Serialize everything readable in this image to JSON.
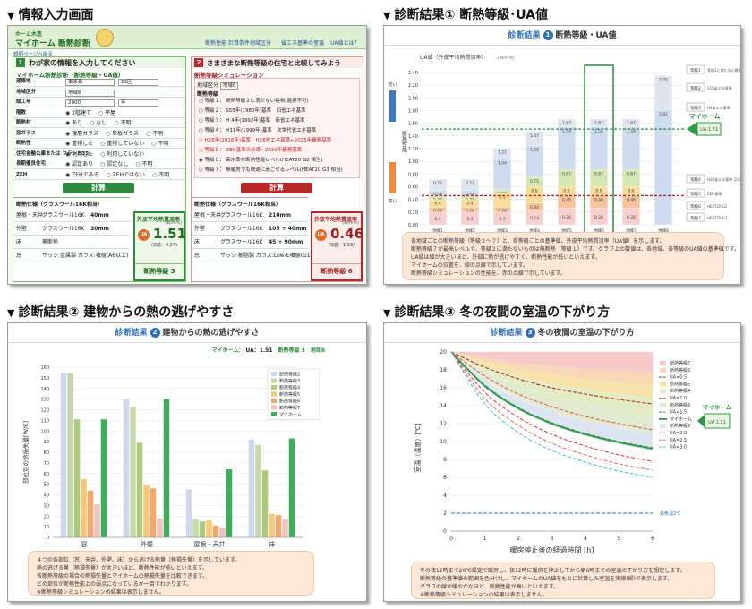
{
  "titles": {
    "t1": "情報入力画面",
    "t2": "診断結果① 断熱等級･UA値",
    "t3": "診断結果② 建物からの熱の逃げやすさ",
    "t4": "診断結果③ 冬の夜間の室温の下がり方"
  },
  "input": {
    "logo_top": "ホーム木造",
    "logo_main": "マイホーム 断熱診断",
    "nav": [
      "断熱性能 計算条件",
      "地域区分",
      "省エネ基準の室温",
      "UA値とは？"
    ],
    "back_link": "説明ページへ戻る",
    "left_header": "わが家の情報を入力してください",
    "left_sub": "マイホーム断熱診断（断熱等級・UA値）",
    "fields": [
      {
        "label": "建築地",
        "value": "東京都",
        "value2": "23区"
      },
      {
        "label": "地域区分",
        "value": "地域6"
      },
      {
        "label": "竣工年",
        "value": "2000",
        "value2": "年"
      },
      {
        "label": "階数",
        "opts": [
          "2階建て",
          "平屋"
        ]
      },
      {
        "label": "断熱材",
        "opts": [
          "あり",
          "なし",
          "不明"
        ]
      },
      {
        "label": "窓ガラス",
        "opts": [
          "複層ガラス",
          "単板ガラス",
          "不明"
        ]
      },
      {
        "label": "断熱性",
        "opts": [
          "重視した",
          "重視していない",
          "不明"
        ]
      },
      {
        "label": "住宅金融公庫または フラット35",
        "opts": [
          "利用した",
          "利用していない"
        ]
      },
      {
        "label": "長期優良住宅",
        "opts": [
          "認定あり",
          "認定なし",
          "不明"
        ]
      },
      {
        "label": "ZEH",
        "opts": [
          "ZEHである",
          "ZEHではない",
          "不明"
        ]
      }
    ],
    "calc": "計算",
    "spec_title": "断熱仕様（グラスウール16K相当）",
    "spec_left": [
      {
        "part": "屋根・天井",
        "mat": "グラスウール16K",
        "thk": "40mm"
      },
      {
        "part": "外壁",
        "mat": "グラスウール16K",
        "thk": "30mm"
      },
      {
        "part": "床",
        "mat": "無断熱",
        "thk": ""
      },
      {
        "part": "窓",
        "mat": "サッシ:金属製 ガラス:複層(A6以上)",
        "thk": ""
      }
    ],
    "ua_label": "外皮平均熱貫流率",
    "ua_unit": "(W/m²K)",
    "ua_left": "1.51",
    "ua_left_std": "(Q値：4.27)",
    "grade_left": "断熱等級 3",
    "right_header": "さまざまな断熱等級の住宅と比較してみよう",
    "right_sub": "断熱等級シミュレーション",
    "right_region": "地域6",
    "right_levels_title": "断熱等級",
    "levels": [
      {
        "g": "等級１：",
        "t": "断熱等級２に満たない建物(選択不可)",
        "red": false
      },
      {
        "g": "等級２：",
        "t": "S55年(1980年)基準",
        "t2": "旧省エネ基準",
        "red": false
      },
      {
        "g": "等級３：",
        "t": "H 4年(1992年)基準",
        "t2": "新省エネ基準",
        "red": false
      },
      {
        "g": "等級４：",
        "t": "H11年(1999年)基準",
        "t2": "次世代省エネ基準",
        "red": false
      },
      {
        "g": "",
        "t": "H28年(2016年)基準",
        "t2": "H28省エネ基準←2025年義務基準",
        "red": true
      },
      {
        "g": "等級５：",
        "t": "ZEH基準の水準←2030年義務基準",
        "red": true
      },
      {
        "g": "等級６：",
        "t": "高水準な断熱性能レベル(HEAT20 G2 相当)",
        "red": false
      },
      {
        "g": "等級７：",
        "t": "無暖房でも快適に過ごせるレベル(HEAT20 G3 相当)",
        "red": false
      }
    ],
    "spec_right": [
      {
        "part": "屋根・天井",
        "mat": "グラスウール16K",
        "thk": "210mm"
      },
      {
        "part": "外壁",
        "mat": "グラスウール16K",
        "thk": "105 + 40mm"
      },
      {
        "part": "床",
        "mat": "グラスウール16K",
        "thk": "45 + 90mm"
      },
      {
        "part": "窓",
        "mat": "サッシ:樹脂製 ガラス:Low-E複層(G10以上)",
        "thk": ""
      }
    ],
    "ua_right": "0.46",
    "ua_right_std": "(Q値：1.59)",
    "grade_right": "断熱等級 6"
  },
  "ua_panel": {
    "heading_k": "診断結果",
    "num": "1",
    "heading": "断熱等級・UA値",
    "axis_label": "UA値（外皮平均熱貫流率）",
    "unit": "(W/m²K)",
    "y_side_top": "低い",
    "y_side_mid": "断熱性能",
    "y_side_bot": "高い",
    "myhome": "マイホーム",
    "myhome_ua": "UA 1.51",
    "notes": [
      "各地域ごとの断熱等級（等級２～７）と、各等級ごとの基準値、外皮平均熱貫流率（UA値）を示します。",
      "断熱等級７が最高レベルで、等級２に満たないものは無断熱（等級１）です。グラフ上の数値は、各地域、各等級のUA値の基準値です。",
      "UA値は値が大きいほど、外部に熱が逃げやすく、断熱性能が低いといえます。",
      "マイホームの位置を、緑の点線で示しています。",
      "断熱等級シミュレーションの性能を、赤の点線で示しています。"
    ]
  },
  "heat_panel": {
    "heading_k": "診断結果",
    "num": "2",
    "heading": "建物からの熱の逃げやすさ",
    "summary_1": "マイホーム：",
    "summary_2": "UA：1.51",
    "summary_3": "断熱等級 3",
    "summary_4": "地域6",
    "ylabel": "部位別の熱損失量[W/K]",
    "notes": [
      "４つの各部位（窓、天井、外壁、床）から逃げる熱量（熱損失量）を示しています。",
      "熱の逃げる量（熱損失量）が大きいほど、断熱性能が低いといえます。",
      "各断熱等級の場合の熱損失量とマイホームの熱損失量を比較できます。",
      "どの部位が断熱性能上の弱点になっているか一目でわかります。",
      "※断熱等級シミュレーションの結果は表示しません。"
    ]
  },
  "temp_panel": {
    "heading_k": "診断結果",
    "num": "3",
    "heading": "冬の夜間の室温の下がり方",
    "ylabel": "室温（温度）[℃]",
    "xlabel": "暖房停止後の経過時間 [h]",
    "outdoor_label": "外気温2℃",
    "myhome_label": "マイホーム",
    "myhome_ua": "UA 1.51",
    "notes": [
      "冬の夜12時まで20℃設定で暖房し、夜12時に暖房を停止してから朝6時までの室温の下がり方を想定します。",
      "断熱等級の基準値の範囲を色分けし、マイホームのUA値をもとに計算した室温を実線(緑)で表示します。",
      "グラフの線が緩やかなほど、断熱性能が高いといえます。",
      "※断熱等級シミュレーションの結果は表示しません。"
    ]
  },
  "chart_data": [
    {
      "type": "bar",
      "name": "ua_by_region",
      "categories": [
        "地域1 夕張 釧路",
        "地域2 札幌 旭川",
        "地域3 盛岡 青森",
        "地域4 仙台 新潟・長野",
        "地域5 水戸 宇都宮",
        "地域6 東京 大阪",
        "地域7 宮崎 鹿児島",
        "地域8 沖縄"
      ],
      "ylim": [
        0,
        2.4
      ],
      "yticks": [
        0,
        0.2,
        0.4,
        0.6,
        0.8,
        1.0,
        1.2,
        1.4,
        1.6,
        1.8,
        2.0,
        2.2,
        2.4
      ],
      "series": [
        {
          "name": "等級2",
          "values": [
            0.72,
            0.72,
            1.21,
            1.47,
            1.67,
            1.67,
            1.67,
            2.35
          ]
        },
        {
          "name": "等級3",
          "values": [
            0.54,
            0.54,
            1.04,
            1.25,
            1.54,
            1.54,
            1.54,
            1.81
          ]
        },
        {
          "name": "等級4",
          "values": [
            0.46,
            0.46,
            0.56,
            0.75,
            0.87,
            0.87,
            0.87,
            null
          ]
        },
        {
          "name": "等級5",
          "values": [
            0.4,
            0.4,
            0.5,
            0.6,
            0.6,
            0.6,
            0.6,
            null
          ]
        },
        {
          "name": "等級6",
          "values": [
            0.28,
            0.28,
            0.28,
            0.34,
            0.46,
            0.46,
            0.46,
            null
          ]
        },
        {
          "name": "等級7",
          "values": [
            0.2,
            0.2,
            0.2,
            0.23,
            0.26,
            0.26,
            0.26,
            null
          ]
        }
      ],
      "legend_right": [
        "等級1 等級2に満たない建物",
        "等級2 S55省エネ基準",
        "等級3 H4省エネ基準",
        "等級4 H28省エネ基準 (2025年義務基準)",
        "等級5 ZEH基準",
        "等級6 HEAT20 G2",
        "等級7 HEAT20 G3"
      ],
      "reference_lines": [
        {
          "name": "マイホーム",
          "value": 1.51,
          "color": "#2e9a46"
        },
        {
          "name": "シミュレーション",
          "value": 0.46,
          "color": "#b8282b"
        }
      ]
    },
    {
      "type": "bar",
      "name": "heat_loss_by_part",
      "categories": [
        "窓",
        "外壁",
        "屋根・天井",
        "床"
      ],
      "ylim": [
        0,
        160
      ],
      "yticks": [
        0,
        10,
        20,
        30,
        40,
        50,
        60,
        70,
        80,
        90,
        100,
        110,
        120,
        130,
        140,
        150,
        160
      ],
      "series": [
        {
          "name": "断熱等級2",
          "color": "#cdd8ec",
          "values": [
            155,
            130,
            45,
            92
          ]
        },
        {
          "name": "断熱等級3",
          "color": "#c6d9ac",
          "values": [
            155,
            123,
            17,
            87
          ]
        },
        {
          "name": "断熱等級4",
          "color": "#acc97c",
          "values": [
            111,
            89,
            15,
            63
          ]
        },
        {
          "name": "断熱等級5",
          "color": "#f6c77d",
          "values": [
            55,
            49,
            16,
            22
          ]
        },
        {
          "name": "断熱等級6",
          "color": "#f0a86c",
          "values": [
            44,
            46,
            11,
            21
          ]
        },
        {
          "name": "断熱等級7",
          "color": "#f4c1c0",
          "values": [
            31,
            18,
            9,
            17
          ]
        },
        {
          "name": "マイホーム",
          "color": "#3fae5a",
          "values": [
            111,
            130,
            64,
            93
          ]
        }
      ]
    },
    {
      "type": "line",
      "name": "room_temp_decline",
      "xlabel": "暖房停止後の経過時間 [h]",
      "ylabel": "室温（温度）[℃]",
      "x": [
        0,
        1,
        2,
        3,
        4,
        5,
        6
      ],
      "xlim": [
        0,
        6
      ],
      "ylim": [
        0,
        20
      ],
      "yticks": [
        0,
        2,
        4,
        6,
        8,
        10,
        12,
        14,
        16,
        18,
        20
      ],
      "series": [
        {
          "name": "UA=0.5",
          "color": "#b8282b",
          "dash": true,
          "values": [
            20,
            18.3,
            17.0,
            16.0,
            15.3,
            14.7,
            14.2
          ]
        },
        {
          "name": "UA=1.0",
          "color": "#e35a5a",
          "dash": true,
          "values": [
            20,
            17.3,
            15.3,
            13.9,
            12.8,
            12.0,
            11.3
          ]
        },
        {
          "name": "UA=1.5",
          "color": "#2e9a46",
          "dash": true,
          "values": [
            20,
            16.3,
            13.8,
            12.1,
            10.9,
            10.0,
            9.3
          ]
        },
        {
          "name": "マイホーム",
          "color": "#2e9a46",
          "dash": false,
          "values": [
            20,
            16.2,
            13.7,
            12.0,
            10.8,
            9.9,
            9.2
          ]
        },
        {
          "name": "UA=2.0",
          "color": "#e04040",
          "dash": true,
          "values": [
            20,
            15.5,
            12.7,
            10.8,
            9.5,
            8.5,
            7.8
          ]
        },
        {
          "name": "UA=2.5",
          "color": "#e56f6f",
          "dash": true,
          "values": [
            20,
            14.8,
            11.8,
            9.8,
            8.5,
            7.5,
            6.8
          ]
        },
        {
          "name": "UA=3.0",
          "color": "#4fc5d8",
          "dash": true,
          "values": [
            20,
            14.2,
            11.0,
            9.0,
            7.7,
            6.7,
            6.0
          ]
        },
        {
          "name": "外気温2℃",
          "color": "#2f6fb5",
          "dash": true,
          "values": [
            2,
            2,
            2,
            2,
            2,
            2,
            2
          ]
        }
      ],
      "bands": [
        {
          "name": "断熱等級7",
          "color": "#f7c9c9",
          "lower": [
            20,
            19.3,
            18.8,
            18.4,
            18.1,
            17.9,
            17.7
          ]
        },
        {
          "name": "断熱等級6",
          "color": "#f7d7b5",
          "lower": [
            20,
            18.9,
            18.1,
            17.5,
            17.0,
            16.6,
            16.3
          ]
        },
        {
          "name": "断熱等級5",
          "color": "#f8e2a8",
          "lower": [
            20,
            18.4,
            17.3,
            16.4,
            15.8,
            15.3,
            14.9
          ]
        },
        {
          "name": "断熱等級4",
          "color": "#e2edc3",
          "lower": [
            20,
            17.8,
            16.2,
            15.0,
            14.2,
            13.6,
            13.1
          ]
        },
        {
          "name": "断熱等級3",
          "color": "#e1ebd0",
          "lower": [
            20,
            16.9,
            14.8,
            13.4,
            12.3,
            11.5,
            10.9
          ]
        },
        {
          "name": "断熱等級2",
          "color": "#dde4f2",
          "lower": [
            20,
            16.0,
            13.5,
            11.8,
            10.6,
            9.7,
            9.0
          ]
        }
      ]
    }
  ]
}
